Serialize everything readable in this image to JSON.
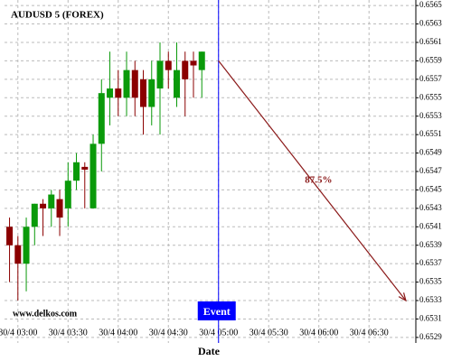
{
  "chart_data": {
    "type": "candlestick",
    "title": "AUDUSD 5 (FOREX)",
    "watermark": "www.delkos.com",
    "xlabel": "Date",
    "candles": {
      "x": [
        175,
        180,
        185,
        190,
        195,
        200,
        205,
        210,
        215,
        220,
        225,
        230,
        235,
        240,
        245,
        250,
        255,
        260,
        265,
        270,
        275,
        280,
        285,
        290
      ],
      "open": [
        0.6541,
        0.6539,
        0.6537,
        0.6541,
        0.65435,
        0.6543,
        0.6544,
        0.6543,
        0.6546,
        0.65475,
        0.6543,
        0.655,
        0.6555,
        0.6556,
        0.6555,
        0.6558,
        0.6557,
        0.6554,
        0.6556,
        0.6559,
        0.6555,
        0.6559,
        0.6559,
        0.6558
      ],
      "high": [
        0.6542,
        0.654,
        0.6542,
        0.65435,
        0.6544,
        0.6545,
        0.6545,
        0.6548,
        0.6549,
        0.6548,
        0.6551,
        0.6557,
        0.656,
        0.6558,
        0.656,
        0.6559,
        0.6558,
        0.6559,
        0.6561,
        0.656,
        0.6561,
        0.656,
        0.656,
        0.656
      ],
      "low": [
        0.6535,
        0.6533,
        0.6534,
        0.6539,
        0.654,
        0.6541,
        0.654,
        0.6541,
        0.6545,
        0.6543,
        0.6543,
        0.6547,
        0.6552,
        0.6553,
        0.6553,
        0.6553,
        0.6551,
        0.6552,
        0.6551,
        0.6556,
        0.6554,
        0.6553,
        0.6555,
        0.6555
      ],
      "close": [
        0.6539,
        0.6537,
        0.6541,
        0.65435,
        0.6543,
        0.65445,
        0.6542,
        0.6546,
        0.6548,
        0.65472,
        0.655,
        0.65555,
        0.6556,
        0.6555,
        0.6558,
        0.6555,
        0.6554,
        0.6557,
        0.6559,
        0.6558,
        0.6558,
        0.6557,
        0.65585,
        0.656
      ]
    },
    "up_color": "#0a9a0a",
    "down_color": "#8b0000",
    "event": {
      "x": 300,
      "label": "Event",
      "color": "#0000ff"
    },
    "arrow": {
      "x": [
        300,
        412
      ],
      "y": [
        0.6559,
        0.6533
      ],
      "label": "87.5%",
      "color": "#8b1a1a"
    },
    "xlim": [
      172,
      418
    ],
    "xticks": [
      {
        "value": 180,
        "label": "30/4 03:00"
      },
      {
        "value": 210,
        "label": "30/4 03:30"
      },
      {
        "value": 240,
        "label": "30/4 04:00"
      },
      {
        "value": 270,
        "label": "30/4 04:30"
      },
      {
        "value": 300,
        "label": "30/4 05:00"
      },
      {
        "value": 330,
        "label": "30/4 05:30"
      },
      {
        "value": 360,
        "label": "30/4 06:00"
      },
      {
        "value": 390,
        "label": "30/4 06:30"
      }
    ],
    "ylim": [
      0.65284,
      0.65656
    ],
    "yticks": [
      0.6529,
      0.6531,
      0.6533,
      0.6535,
      0.6537,
      0.6539,
      0.6541,
      0.6543,
      0.6545,
      0.6547,
      0.6549,
      0.6551,
      0.6553,
      0.6555,
      0.6557,
      0.6559,
      0.6561,
      0.6563,
      0.6565
    ],
    "grid": true
  }
}
